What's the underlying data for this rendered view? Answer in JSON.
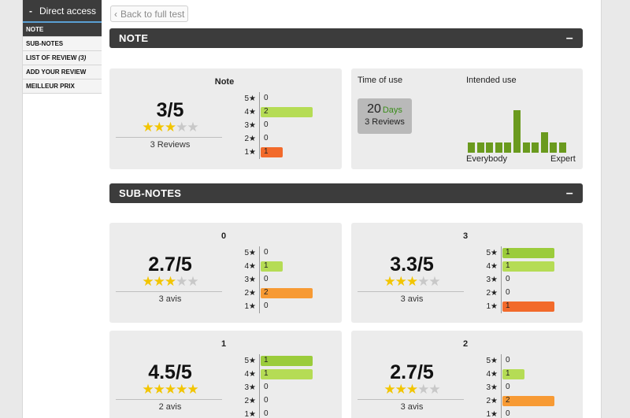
{
  "sidebar": {
    "header_toggle": "-",
    "header_label": "Direct access",
    "items": [
      {
        "label": "NOTE",
        "count": ""
      },
      {
        "label": "SUB-NOTES",
        "count": ""
      },
      {
        "label": "LIST OF REVIEW",
        "count": "(3)"
      },
      {
        "label": "ADD YOUR REVIEW",
        "count": ""
      },
      {
        "label": "MEILLEUR PRIX",
        "count": ""
      }
    ]
  },
  "back_button": {
    "chevron": "‹",
    "label": "Back to full test"
  },
  "note_section": {
    "title": "NOTE",
    "toggle": "–"
  },
  "subnotes_section": {
    "title": "SUB-NOTES",
    "toggle": "–"
  },
  "main_note": {
    "title": "Note",
    "score": "3/5",
    "stars_on": 3,
    "count_label": "3 Reviews",
    "distribution": [
      {
        "label": "5★",
        "value": "0",
        "fraction": 0
      },
      {
        "label": "4★",
        "value": "2",
        "fraction": 1
      },
      {
        "label": "3★",
        "value": "0",
        "fraction": 0
      },
      {
        "label": "2★",
        "value": "0",
        "fraction": 0
      },
      {
        "label": "1★",
        "value": "1",
        "fraction": 0.43
      }
    ]
  },
  "time_of_use": {
    "label": "Time of use",
    "number": "20",
    "unit": "Days",
    "reviews": "3 Reviews"
  },
  "intended_use": {
    "label": "Intended use",
    "left_label": "Everybody",
    "right_label": "Expert",
    "levels": [
      0.24,
      0.24,
      0.24,
      0.24,
      0.24,
      1.0,
      0.24,
      0.24,
      0.49,
      0.24,
      0.24
    ]
  },
  "sub_notes": [
    {
      "title": "0",
      "score": "2.7/5",
      "stars_on": 3,
      "count_label": "3 avis",
      "distribution": [
        {
          "label": "5★",
          "value": "0",
          "fraction": 0
        },
        {
          "label": "4★",
          "value": "1",
          "fraction": 0.43
        },
        {
          "label": "3★",
          "value": "0",
          "fraction": 0
        },
        {
          "label": "2★",
          "value": "2",
          "fraction": 1
        },
        {
          "label": "1★",
          "value": "0",
          "fraction": 0
        }
      ]
    },
    {
      "title": "3",
      "score": "3.3/5",
      "stars_on": 3,
      "count_label": "3 avis",
      "distribution": [
        {
          "label": "5★",
          "value": "1",
          "fraction": 1
        },
        {
          "label": "4★",
          "value": "1",
          "fraction": 1
        },
        {
          "label": "3★",
          "value": "0",
          "fraction": 0
        },
        {
          "label": "2★",
          "value": "0",
          "fraction": 0
        },
        {
          "label": "1★",
          "value": "1",
          "fraction": 1
        }
      ]
    },
    {
      "title": "1",
      "score": "4.5/5",
      "stars_on": 5,
      "count_label": "2 avis",
      "distribution": [
        {
          "label": "5★",
          "value": "1",
          "fraction": 1
        },
        {
          "label": "4★",
          "value": "1",
          "fraction": 1
        },
        {
          "label": "3★",
          "value": "0",
          "fraction": 0
        },
        {
          "label": "2★",
          "value": "0",
          "fraction": 0
        },
        {
          "label": "1★",
          "value": "0",
          "fraction": 0
        }
      ]
    },
    {
      "title": "2",
      "score": "2.7/5",
      "stars_on": 3,
      "count_label": "3 avis",
      "distribution": [
        {
          "label": "5★",
          "value": "0",
          "fraction": 0
        },
        {
          "label": "4★",
          "value": "1",
          "fraction": 0.43
        },
        {
          "label": "3★",
          "value": "0",
          "fraction": 0
        },
        {
          "label": "2★",
          "value": "2",
          "fraction": 1
        },
        {
          "label": "1★",
          "value": "0",
          "fraction": 0
        }
      ]
    }
  ],
  "colors": {
    "bar_5": "#9bcc3b",
    "bar_4": "#b5dc55",
    "bar_2": "#f79a34",
    "bar_1": "#f26a2b",
    "star_on": "#f2c500",
    "star_off": "#c8c8c8",
    "intended_use_bar": "#6a9a1e",
    "section_bar": "#3c3c3c"
  }
}
